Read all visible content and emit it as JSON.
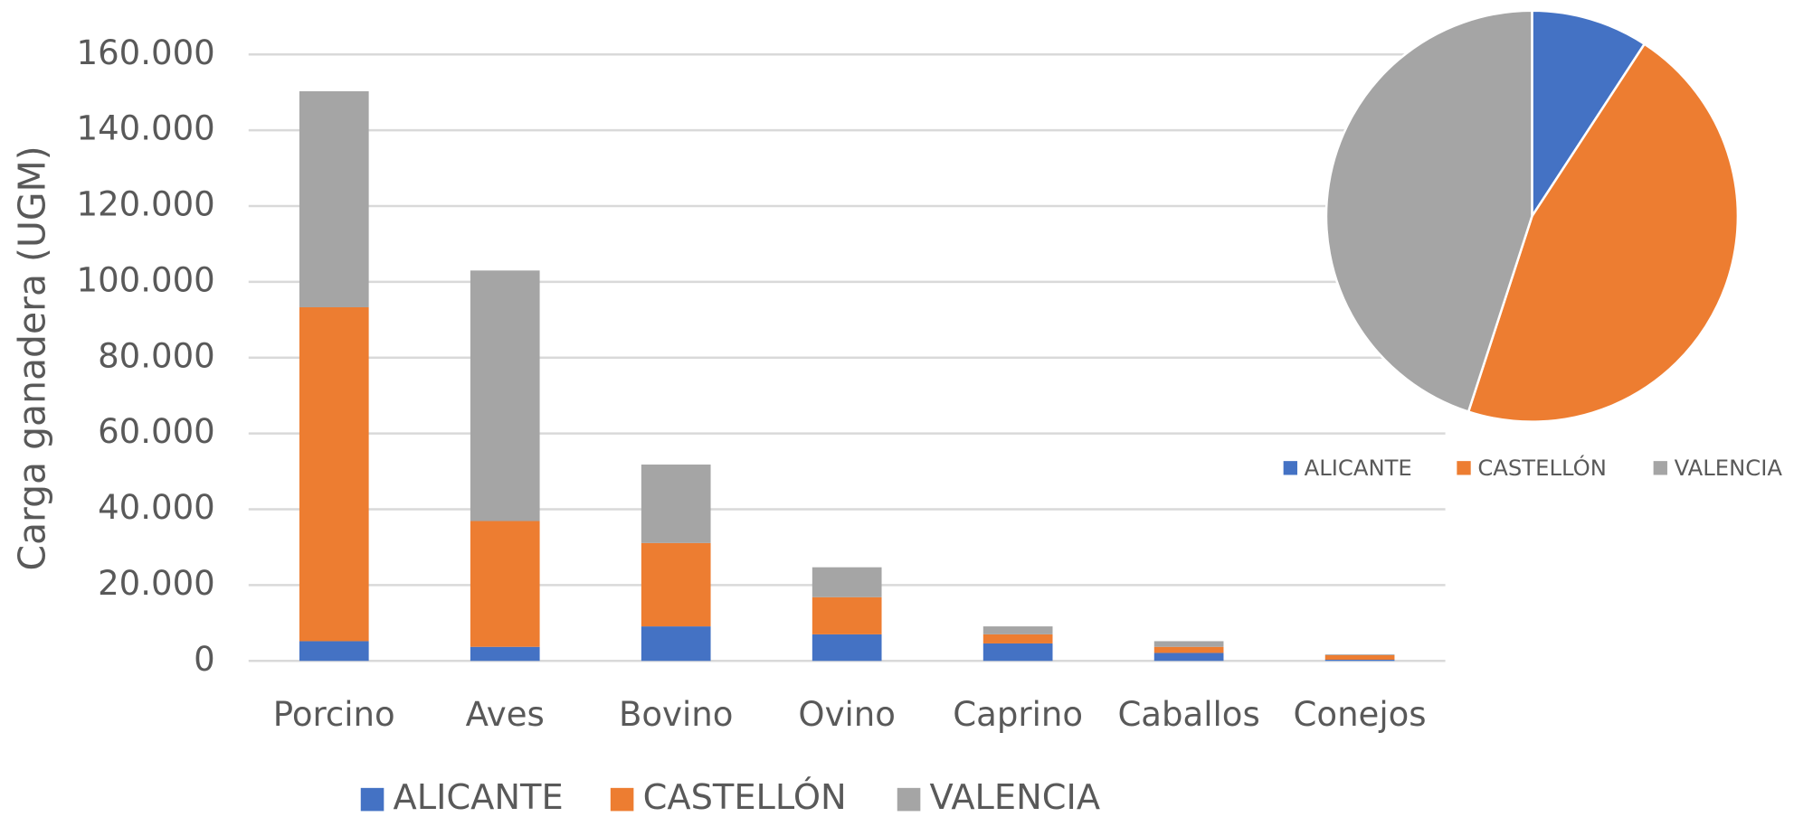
{
  "chart_data": [
    {
      "type": "bar",
      "stacked": true,
      "ylabel": "Carga ganadera (UGM)",
      "categories": [
        "Porcino",
        "Aves",
        "Bovino",
        "Ovino",
        "Caprino",
        "Caballos",
        "Conejos"
      ],
      "series": [
        {
          "name": "ALICANTE",
          "color": "#4472c4",
          "values": [
            5200,
            3700,
            9100,
            7000,
            4600,
            2100,
            300
          ]
        },
        {
          "name": "CASTELLÓN",
          "color": "#ed7d31",
          "values": [
            88100,
            33200,
            22000,
            9800,
            2400,
            1600,
            1200
          ]
        },
        {
          "name": "VALENCIA",
          "color": "#a5a5a5",
          "values": [
            57000,
            66100,
            20700,
            7900,
            2100,
            1500,
            200
          ]
        }
      ],
      "ylim": [
        0,
        160000
      ],
      "yticks": [
        0,
        {
          "value": 20000,
          "label": "20.000"
        },
        {
          "value": 40000,
          "label": "40.000"
        },
        {
          "value": 60000,
          "label": "60.000"
        },
        {
          "value": 80000,
          "label": "80.000"
        },
        {
          "value": 100000,
          "label": "100.000"
        },
        {
          "value": 120000,
          "label": "120.000"
        },
        {
          "value": 140000,
          "label": "140.000"
        },
        {
          "value": 160000,
          "label": "160.000"
        }
      ],
      "grid": true,
      "legend": "bottom"
    },
    {
      "type": "pie",
      "categories": [
        "ALICANTE",
        "CASTELLÓN",
        "VALENCIA"
      ],
      "values": [
        9.2,
        45.8,
        45.0
      ],
      "colors": [
        "#4472c4",
        "#ed7d31",
        "#a5a5a5"
      ],
      "legend": "bottom"
    }
  ]
}
